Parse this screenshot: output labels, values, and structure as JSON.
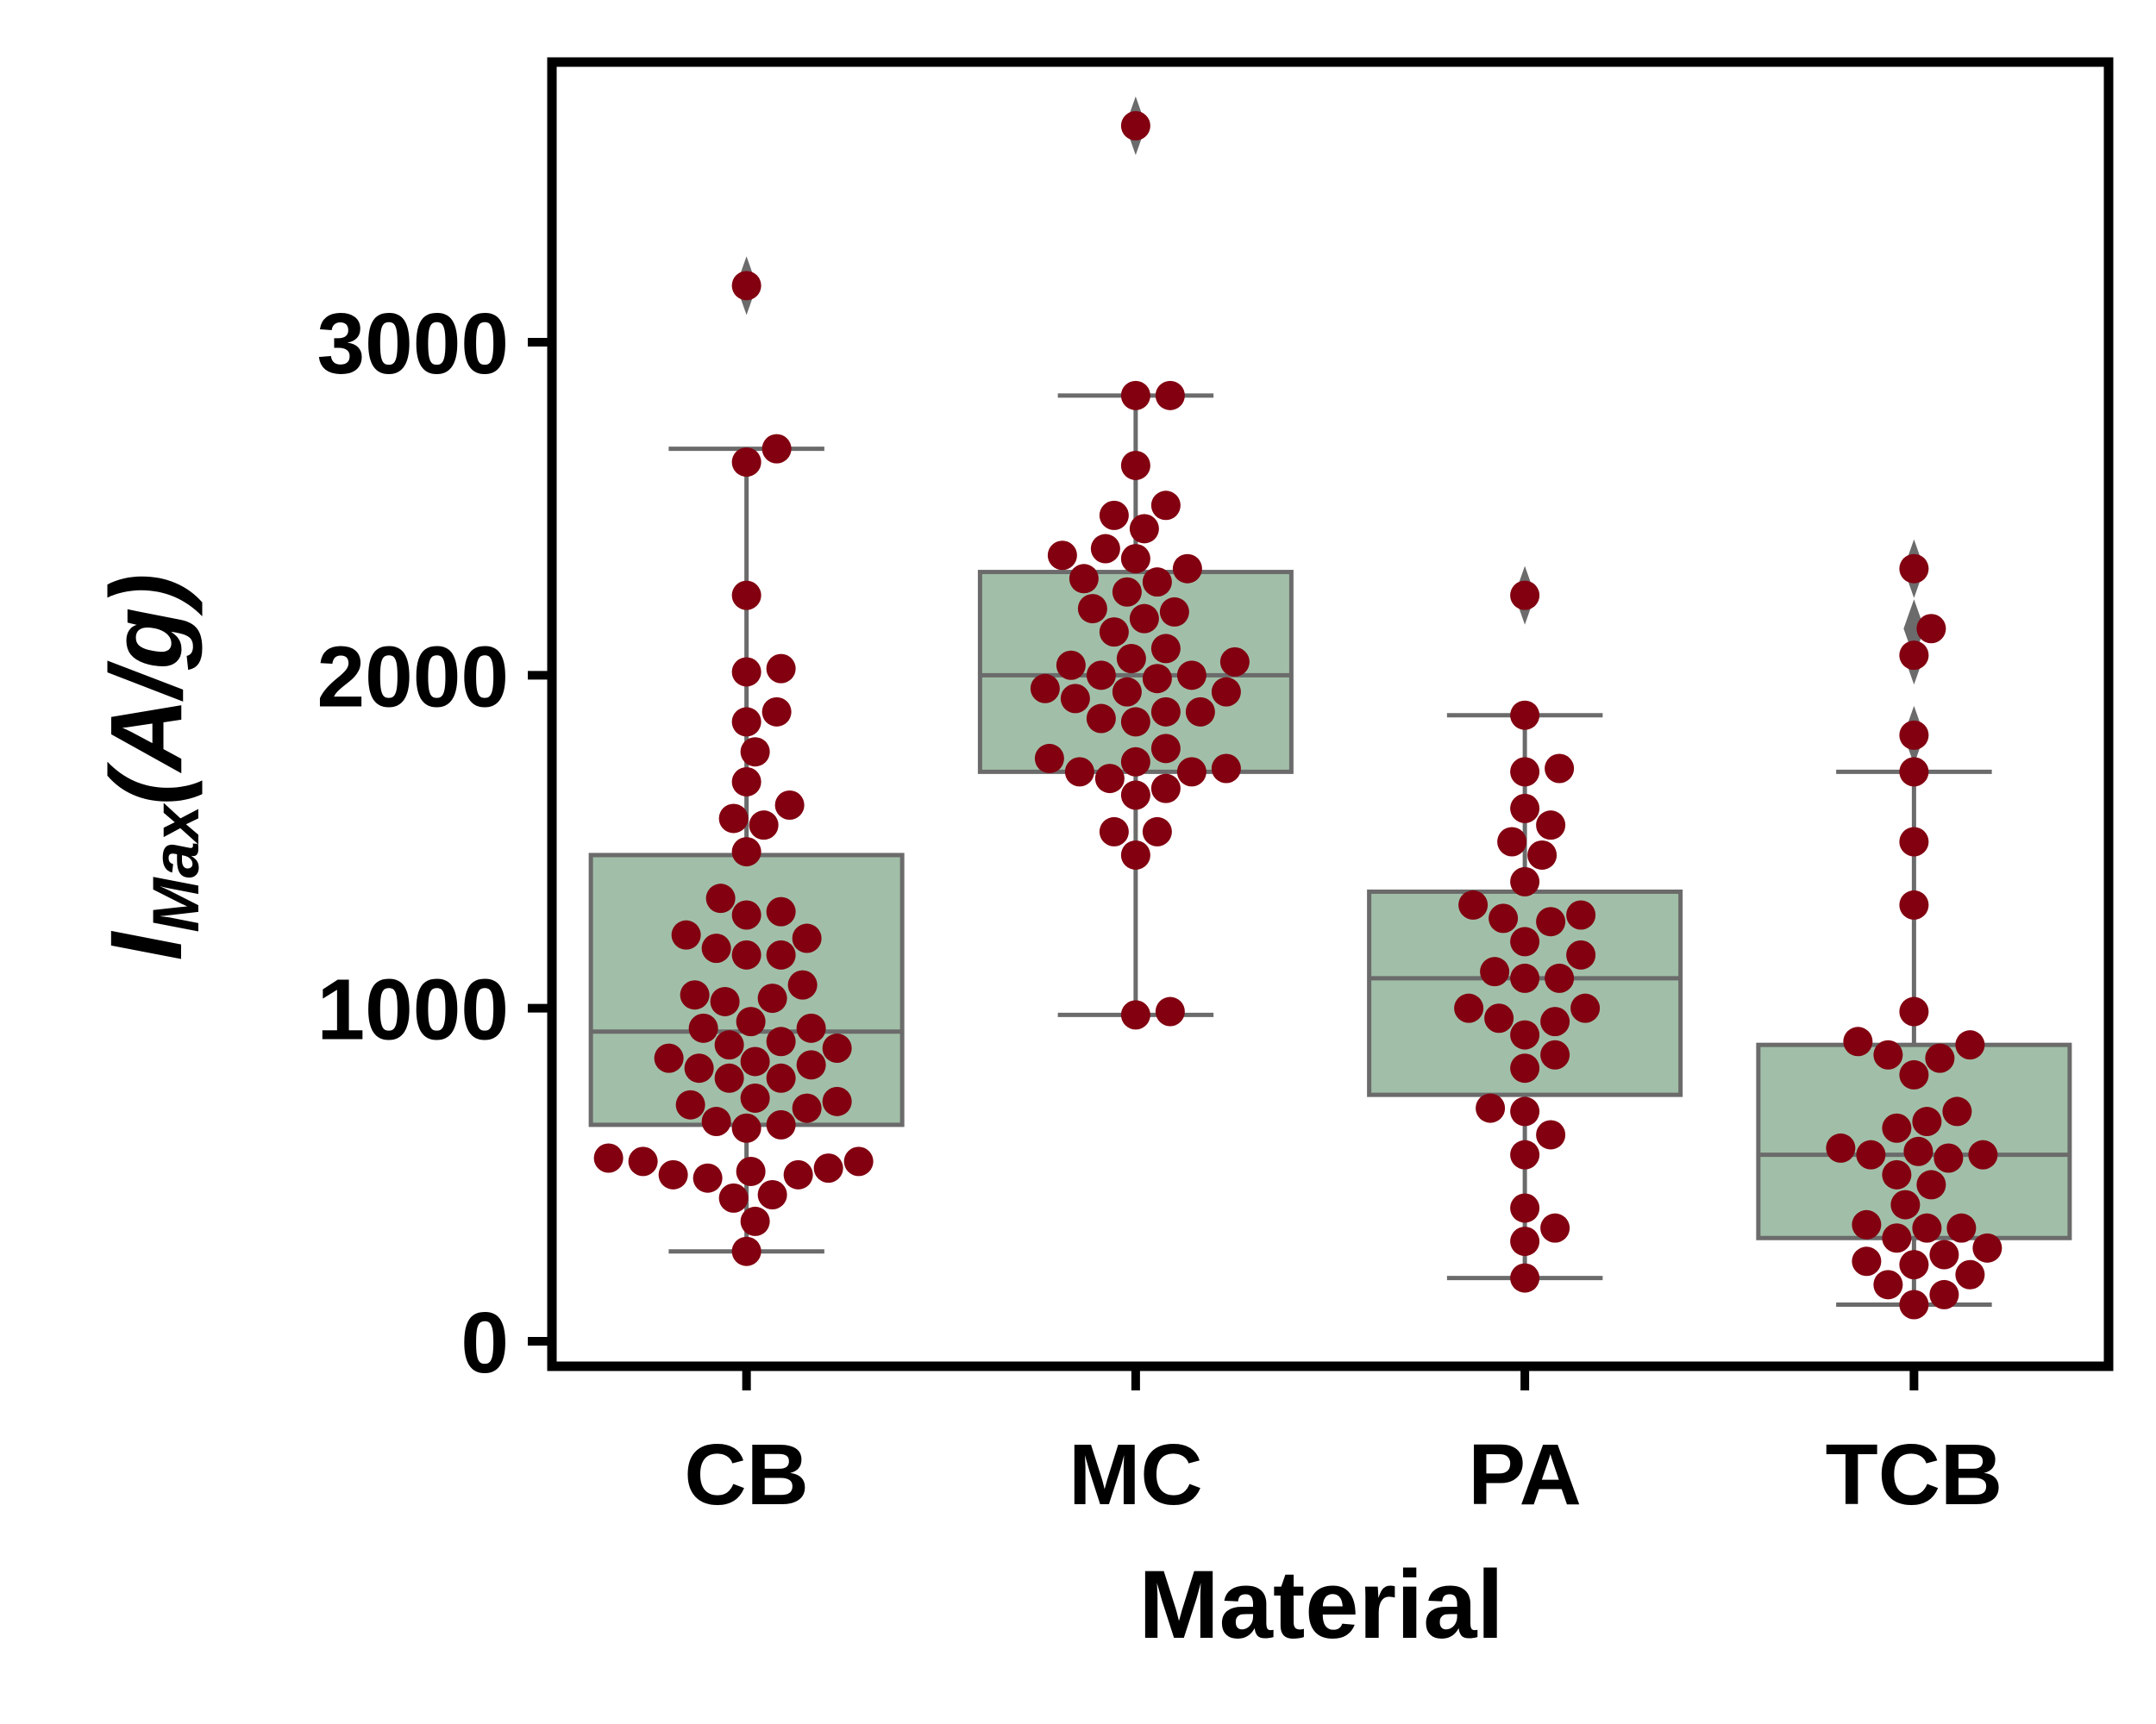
{
  "chart_data": {
    "type": "box",
    "xlabel": "Material",
    "ylabel": {
      "main": "I",
      "sub": "Max",
      "unit": "(A/g)"
    },
    "categories": [
      "CB",
      "MC",
      "PA",
      "TCB"
    ],
    "yticks": [
      0,
      1000,
      2000,
      3000
    ],
    "ylim": [
      -80,
      3800
    ],
    "grid": false,
    "colors": {
      "box_fill": "#a1bfa8",
      "box_edge": "#6b6b6b",
      "point": "#820010",
      "frame": "#000000"
    },
    "boxes": [
      {
        "category": "CB",
        "q1": 650,
        "median": 930,
        "q3": 1460,
        "whisker_low": 270,
        "whisker_high": 2680,
        "outliers": [
          3170
        ]
      },
      {
        "category": "MC",
        "q1": 1710,
        "median": 2000,
        "q3": 2310,
        "whisker_low": 980,
        "whisker_high": 2840,
        "outliers": [
          3650
        ]
      },
      {
        "category": "PA",
        "q1": 740,
        "median": 1090,
        "q3": 1350,
        "whisker_low": 190,
        "whisker_high": 1880,
        "outliers": [
          2240
        ]
      },
      {
        "category": "TCB",
        "q1": 310,
        "median": 560,
        "q3": 890,
        "whisker_low": 110,
        "whisker_high": 1710,
        "outliers": [
          2320,
          2140,
          2060,
          1820
        ]
      }
    ],
    "points": [
      {
        "category": "CB",
        "values": [
          3170,
          2680,
          2640,
          2240,
          2020,
          2010,
          1890,
          1860,
          1770,
          1680,
          1610,
          1570,
          1550,
          1470,
          1330,
          1290,
          1280,
          1220,
          1210,
          1180,
          1160,
          1160,
          1070,
          1040,
          1030,
          1020,
          960,
          940,
          940,
          900,
          890,
          880,
          850,
          840,
          830,
          820,
          790,
          790,
          730,
          720,
          710,
          700,
          660,
          650,
          640,
          550,
          540,
          540,
          520,
          510,
          500,
          500,
          490,
          440,
          430,
          360,
          270
        ]
      },
      {
        "category": "MC",
        "values": [
          3650,
          2840,
          2840,
          2630,
          2510,
          2480,
          2440,
          2380,
          2360,
          2350,
          2320,
          2290,
          2280,
          2250,
          2200,
          2190,
          2170,
          2130,
          2080,
          2050,
          2040,
          2030,
          2000,
          2000,
          1990,
          1960,
          1950,
          1950,
          1930,
          1890,
          1890,
          1870,
          1860,
          1780,
          1750,
          1740,
          1720,
          1710,
          1710,
          1690,
          1660,
          1640,
          1530,
          1530,
          1460,
          990,
          980
        ]
      },
      {
        "category": "PA",
        "values": [
          2240,
          1880,
          1720,
          1710,
          1600,
          1550,
          1500,
          1460,
          1380,
          1310,
          1280,
          1270,
          1260,
          1200,
          1160,
          1110,
          1090,
          1090,
          1000,
          1000,
          970,
          960,
          920,
          860,
          820,
          700,
          690,
          620,
          560,
          400,
          340,
          300,
          190
        ]
      },
      {
        "category": "TCB",
        "values": [
          2320,
          2140,
          2060,
          1820,
          1710,
          1500,
          1310,
          990,
          900,
          890,
          860,
          850,
          800,
          690,
          660,
          640,
          580,
          570,
          560,
          560,
          550,
          500,
          470,
          410,
          350,
          340,
          340,
          310,
          280,
          260,
          240,
          230,
          200,
          170,
          140,
          110
        ]
      }
    ]
  }
}
